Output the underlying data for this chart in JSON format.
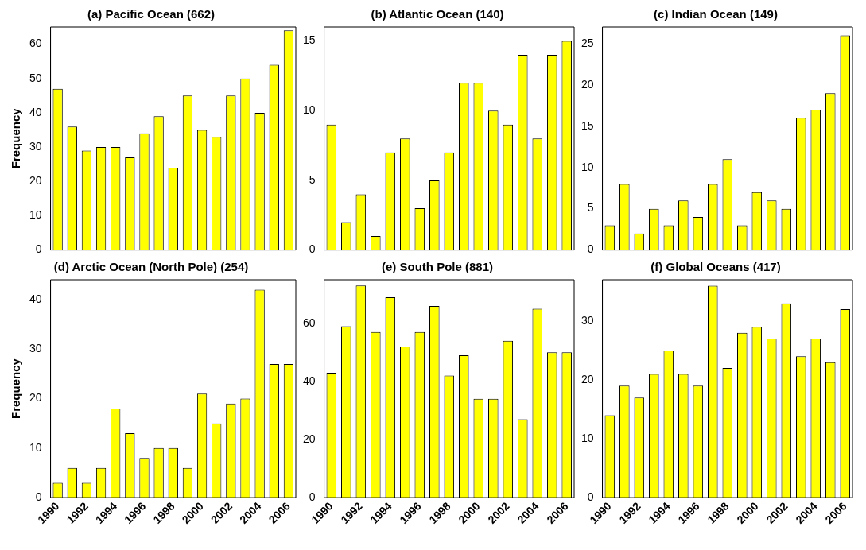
{
  "chart_data": [
    {
      "type": "bar",
      "title": "(a) Pacific Ocean (662)",
      "ylabel": "Frequency",
      "categories": [
        "1990",
        null,
        "1992",
        null,
        "1994",
        null,
        "1996",
        null,
        "1998",
        null,
        "2000",
        null,
        "2002",
        null,
        "2004",
        null,
        "2006"
      ],
      "values": [
        47,
        36,
        29,
        30,
        30,
        27,
        34,
        39,
        24,
        45,
        35,
        33,
        45,
        50,
        40,
        54,
        64
      ],
      "color": "#ffff00",
      "ylim": [
        0,
        65
      ],
      "yticks": [
        0,
        10,
        20,
        30,
        40,
        50,
        60
      ],
      "grid": false,
      "legend": false,
      "tick_labels": "y"
    },
    {
      "type": "bar",
      "title": "(b) Atlantic Ocean (140)",
      "categories": [
        "1990",
        null,
        "1992",
        null,
        "1994",
        null,
        "1996",
        null,
        "1998",
        null,
        "2000",
        null,
        "2002",
        null,
        "2004",
        null,
        "2006"
      ],
      "values": [
        9,
        2,
        4,
        1,
        7,
        8,
        3,
        5,
        7,
        12,
        12,
        10,
        9,
        14,
        8,
        14,
        15
      ],
      "color": "#ffff00",
      "ylim": [
        0,
        16
      ],
      "yticks": [
        0,
        5,
        10,
        15
      ],
      "grid": false,
      "legend": false,
      "tick_labels": "y"
    },
    {
      "type": "bar",
      "title": "(c) Indian Ocean (149)",
      "categories": [
        "1990",
        null,
        "1992",
        null,
        "1994",
        null,
        "1996",
        null,
        "1998",
        null,
        "2000",
        null,
        "2002",
        null,
        "2004",
        null,
        "2006"
      ],
      "values": [
        3,
        8,
        2,
        5,
        3,
        6,
        4,
        8,
        11,
        3,
        7,
        6,
        5,
        16,
        17,
        19,
        26
      ],
      "color": "#ffff00",
      "ylim": [
        0,
        27
      ],
      "yticks": [
        0,
        5,
        10,
        15,
        20,
        25
      ],
      "grid": false,
      "legend": false,
      "tick_labels": "y"
    },
    {
      "type": "bar",
      "title": "(d) Arctic Ocean (North Pole) (254)",
      "ylabel": "Frequency",
      "categories": [
        "1990",
        null,
        "1992",
        null,
        "1994",
        null,
        "1996",
        null,
        "1998",
        null,
        "2000",
        null,
        "2002",
        null,
        "2004",
        null,
        "2006"
      ],
      "values": [
        3,
        6,
        3,
        6,
        18,
        13,
        8,
        10,
        10,
        6,
        21,
        15,
        19,
        20,
        42,
        27,
        27
      ],
      "color": "#ffff00",
      "ylim": [
        0,
        44
      ],
      "yticks": [
        0,
        10,
        20,
        30,
        40
      ],
      "grid": false,
      "legend": false
    },
    {
      "type": "bar",
      "title": "(e) South Pole (881)",
      "categories": [
        "1990",
        null,
        "1992",
        null,
        "1994",
        null,
        "1996",
        null,
        "1998",
        null,
        "2000",
        null,
        "2002",
        null,
        "2004",
        null,
        "2006"
      ],
      "values": [
        43,
        59,
        73,
        57,
        69,
        52,
        57,
        66,
        42,
        49,
        34,
        34,
        54,
        27,
        65,
        50,
        50
      ],
      "color": "#ffff00",
      "ylim": [
        0,
        75
      ],
      "yticks": [
        0,
        20,
        40,
        60
      ],
      "grid": false,
      "legend": false
    },
    {
      "type": "bar",
      "title": "(f) Global Oceans (417)",
      "categories": [
        "1990",
        null,
        "1992",
        null,
        "1994",
        null,
        "1996",
        null,
        "1998",
        null,
        "2000",
        null,
        "2002",
        null,
        "2004",
        null,
        "2006"
      ],
      "values": [
        14,
        19,
        17,
        21,
        25,
        21,
        19,
        36,
        22,
        28,
        29,
        27,
        33,
        24,
        27,
        23,
        32
      ],
      "color": "#ffff00",
      "ylim": [
        0,
        37
      ],
      "yticks": [
        0,
        10,
        20,
        30
      ],
      "grid": false,
      "legend": false
    }
  ]
}
